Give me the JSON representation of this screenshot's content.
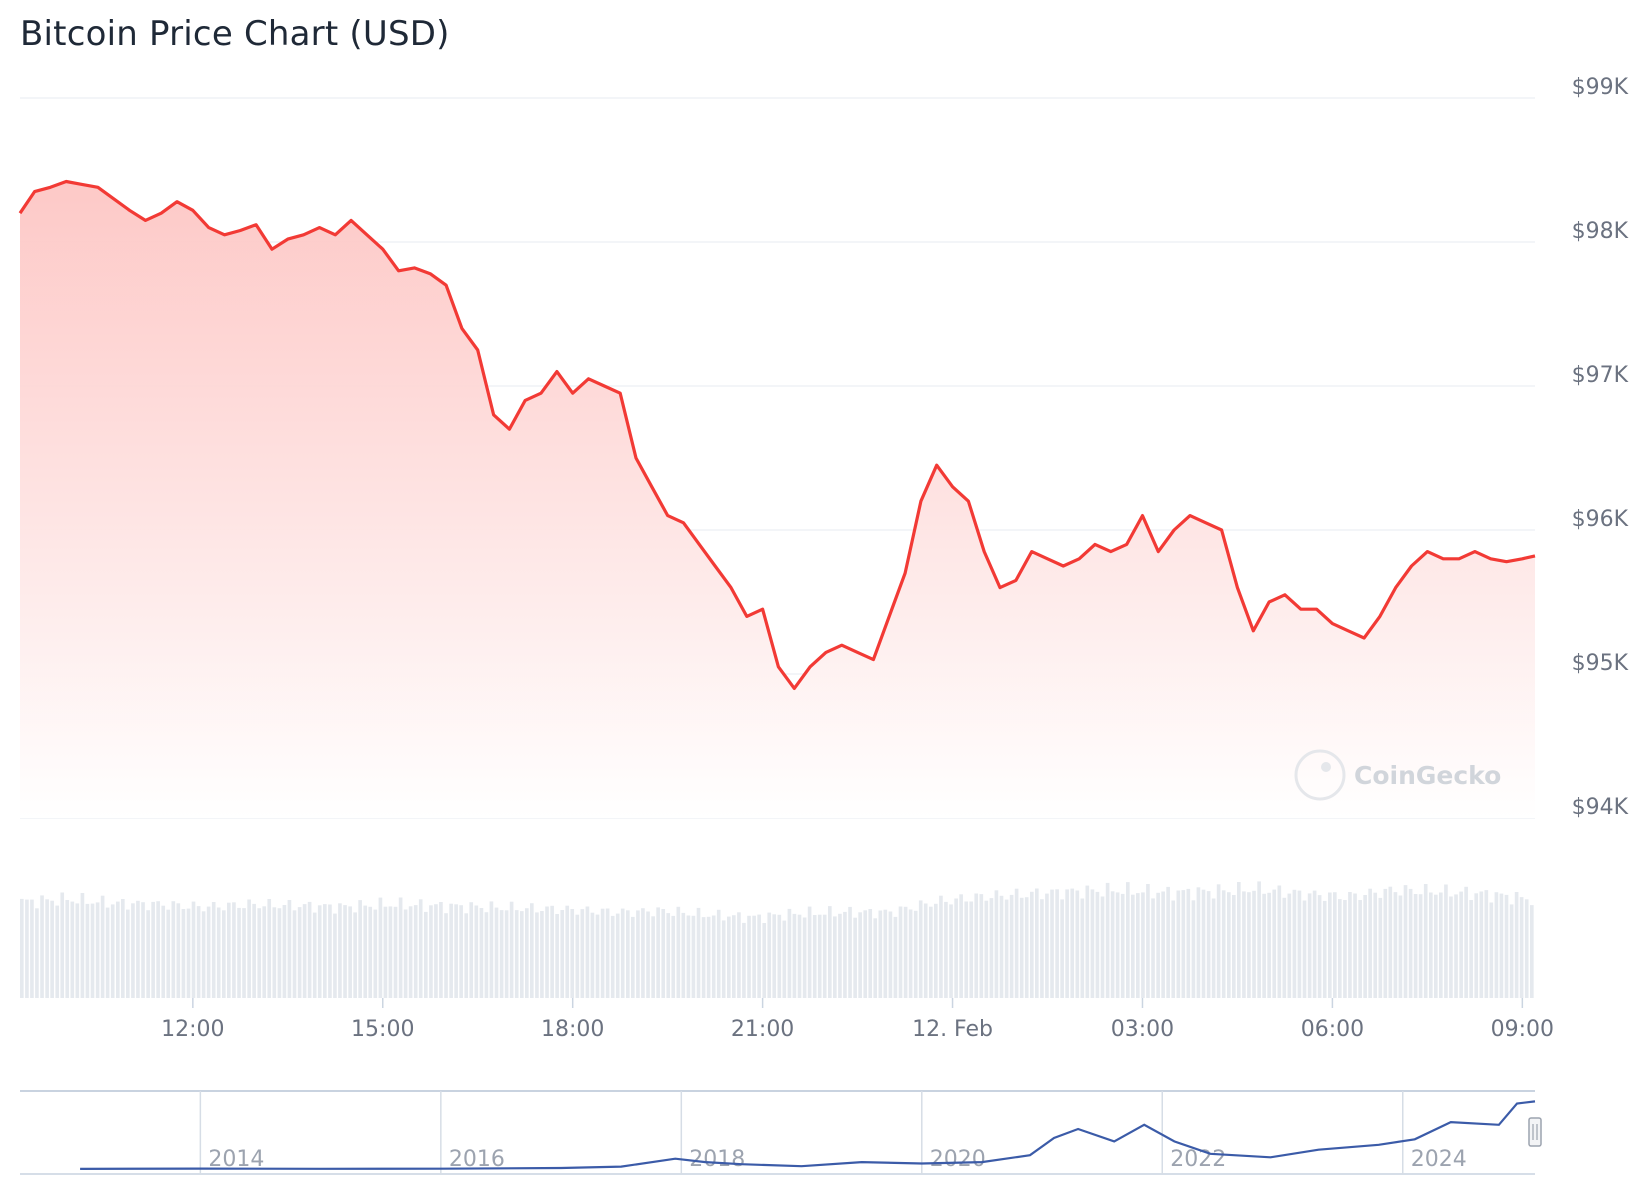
{
  "chart_data": {
    "type": "area",
    "title": "Bitcoin Price Chart (USD)",
    "currency": "USD",
    "y_axis_position": "right",
    "ylim": [
      94000,
      99000
    ],
    "y_ticks": [
      "$94K",
      "$95K",
      "$96K",
      "$97K",
      "$98K",
      "$99K"
    ],
    "y_tick_values": [
      94000,
      95000,
      96000,
      97000,
      98000,
      99000
    ],
    "x_ticks": [
      "12:00",
      "15:00",
      "18:00",
      "21:00",
      "12. Feb",
      "03:00",
      "06:00",
      "09:00"
    ],
    "x_tick_hours": [
      12,
      15,
      18,
      21,
      24,
      27,
      30,
      33
    ],
    "xlim_hours": [
      9.27,
      33.2
    ],
    "grid": true,
    "colors": {
      "line": "#f23a35",
      "fill_top": "#fdc6c4",
      "fill_bottom": "#ffffff",
      "volume": "#e5e9ee",
      "navigator_line": "#3b5ba8"
    },
    "series": [
      {
        "x": [
          9.27,
          9.5,
          9.75,
          10.0,
          10.25,
          10.5,
          10.75,
          11.0,
          11.25,
          11.5,
          11.75,
          12.0,
          12.25,
          12.5,
          12.75,
          13.0,
          13.25,
          13.5,
          13.75,
          14.0,
          14.25,
          14.5,
          14.75,
          15.0,
          15.25,
          15.5,
          15.75,
          16.0,
          16.25,
          16.5,
          16.75,
          17.0,
          17.25,
          17.5,
          17.75,
          18.0,
          18.25,
          18.5,
          18.75,
          19.0,
          19.25,
          19.5,
          19.75,
          20.0,
          20.25,
          20.5,
          20.75,
          21.0,
          21.25,
          21.5,
          21.75,
          22.0,
          22.25,
          22.5,
          22.75,
          23.0,
          23.25,
          23.5,
          23.75,
          24.0,
          24.25,
          24.5,
          24.75,
          25.0,
          25.25,
          25.5,
          25.75,
          26.0,
          26.25,
          26.5,
          26.75,
          27.0,
          27.25,
          27.5,
          27.75,
          28.0,
          28.25,
          28.5,
          28.75,
          29.0,
          29.25,
          29.5,
          29.75,
          30.0,
          30.25,
          30.5,
          30.75,
          31.0,
          31.25,
          31.5,
          31.75,
          32.0,
          32.25,
          32.5,
          32.75,
          33.0,
          33.2
        ],
        "values": [
          98200,
          98350,
          98380,
          98420,
          98400,
          98380,
          98300,
          98220,
          98150,
          98200,
          98280,
          98220,
          98100,
          98050,
          98080,
          98120,
          97950,
          98020,
          98050,
          98100,
          98050,
          98150,
          98050,
          97950,
          97800,
          97820,
          97780,
          97700,
          97400,
          97250,
          96800,
          96700,
          96900,
          96950,
          97100,
          96950,
          97050,
          97000,
          96950,
          96500,
          96300,
          96100,
          96050,
          95900,
          95750,
          95600,
          95400,
          95450,
          95050,
          94900,
          95050,
          95150,
          95200,
          95150,
          95100,
          95400,
          95700,
          96200,
          96450,
          96300,
          96200,
          95850,
          95600,
          95650,
          95850,
          95800,
          95750,
          95800,
          95900,
          95850,
          95900,
          96100,
          95850,
          96000,
          96100,
          96050,
          96000,
          95600,
          95300,
          95500,
          95550,
          95450,
          95450,
          95350,
          95300,
          95250,
          95400,
          95600,
          95750,
          95850,
          95800,
          95800,
          95850,
          95800,
          95780,
          95800,
          95820
        ]
      }
    ],
    "volume": {
      "relative_values": [
        0.74,
        0.76,
        0.73,
        0.72,
        0.7,
        0.72,
        0.71,
        0.7,
        0.72,
        0.71,
        0.7,
        0.69,
        0.68,
        0.66,
        0.67,
        0.64,
        0.62,
        0.65,
        0.66,
        0.66,
        0.74,
        0.78,
        0.8,
        0.82,
        0.83,
        0.81,
        0.82,
        0.84,
        0.8,
        0.78,
        0.83,
        0.82,
        0.8,
        0.76
      ]
    },
    "watermark": "CoinGecko",
    "navigator": {
      "x_ticks": [
        "2014",
        "2016",
        "2018",
        "2020",
        "2022",
        "2024"
      ],
      "x": [
        2013.0,
        2014.0,
        2015.0,
        2016.0,
        2017.0,
        2017.5,
        2017.95,
        2018.2,
        2018.5,
        2019.0,
        2019.5,
        2020.0,
        2020.5,
        2020.9,
        2021.1,
        2021.3,
        2021.6,
        2021.85,
        2022.1,
        2022.4,
        2022.9,
        2023.3,
        2023.8,
        2024.1,
        2024.4,
        2024.8,
        2024.95,
        2025.1
      ],
      "values": [
        0.1,
        0.6,
        0.3,
        0.5,
        1.5,
        3.5,
        15.0,
        10.0,
        7.0,
        4.0,
        10.0,
        8.0,
        10.0,
        20.0,
        45.0,
        58.0,
        40.0,
        64.0,
        40.0,
        22.0,
        17.0,
        28.0,
        35.0,
        43.0,
        68.0,
        64.0,
        95.0,
        98.0
      ]
    }
  }
}
